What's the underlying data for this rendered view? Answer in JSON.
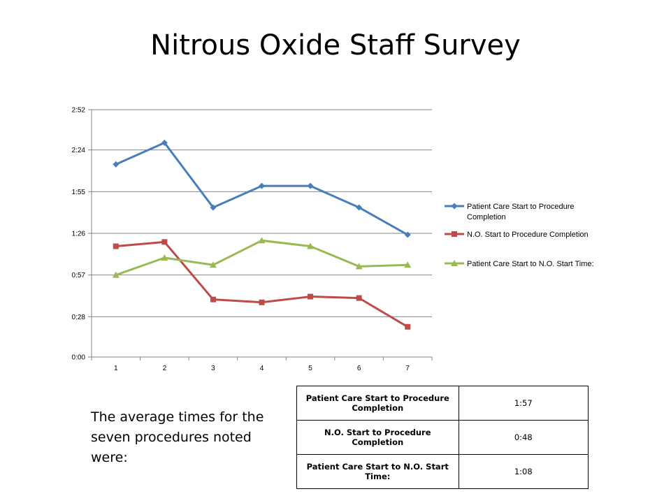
{
  "slide": {
    "title": "Nitrous Oxide Staff Survey",
    "note": "The average times for the seven procedures noted were:"
  },
  "colors": {
    "series_blue": "#4a7ebb",
    "series_red": "#be4b48",
    "series_green": "#98b954",
    "gridline": "#868686"
  },
  "chart_data": {
    "type": "line",
    "title": "",
    "xlabel": "",
    "ylabel": "",
    "categories": [
      "1",
      "2",
      "3",
      "4",
      "5",
      "6",
      "7"
    ],
    "y_unit": "minutes:seconds",
    "y_ticks": [
      "0:00",
      "0:28",
      "0:57",
      "1:26",
      "1:55",
      "2:24",
      "2:52"
    ],
    "y_tick_seconds": [
      0,
      28,
      57,
      86,
      115,
      144,
      172
    ],
    "ylim_seconds": [
      0,
      172
    ],
    "grid": true,
    "legend_position": "right",
    "series": [
      {
        "name": "Patient Care Start to Procedure Completion",
        "color": "#4a7ebb",
        "marker": "diamond",
        "values_seconds": [
          134,
          149,
          104,
          119,
          119,
          104,
          85
        ]
      },
      {
        "name": "N.O. Start to Procedure Completion",
        "color": "#be4b48",
        "marker": "square",
        "values_seconds": [
          77,
          80,
          40,
          38,
          42,
          41,
          21
        ]
      },
      {
        "name": "Patient Care Start to N.O. Start Time:",
        "color": "#98b954",
        "marker": "triangle",
        "values_seconds": [
          57,
          69,
          64,
          81,
          77,
          63,
          64
        ]
      }
    ]
  },
  "summary_table": {
    "rows": [
      {
        "label": "Patient Care Start to Procedure Completion",
        "value": "1:57"
      },
      {
        "label": "N.O. Start to Procedure Completion",
        "value": "0:48"
      },
      {
        "label": "Patient Care Start to N.O. Start Time:",
        "value": "1:08"
      }
    ]
  }
}
